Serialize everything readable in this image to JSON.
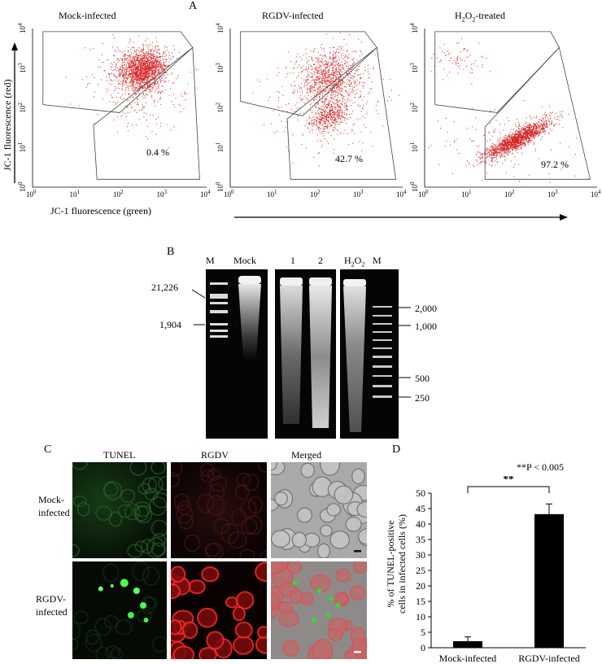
{
  "panel_a": {
    "letter": "A",
    "plots": [
      {
        "title": "Mock-infected",
        "percent": "0.4 %"
      },
      {
        "title": "RGDV-infected",
        "percent": "42.7 %"
      },
      {
        "title_main": "H",
        "title_sub": "2",
        "title_rest": "O",
        "title_sub2": "2",
        "title_tail": "-treated",
        "percent": "97.2 %"
      }
    ],
    "y_axis_label": "JC-1 fluorescence (red)",
    "x_axis_label": "JC-1 fluorescence (green)",
    "tick_base": "10",
    "tick_exponents": [
      "0",
      "1",
      "2",
      "3",
      "4"
    ],
    "dot_color": "#d42020"
  },
  "panel_b": {
    "letter": "B",
    "lanes_left": [
      "M",
      "Mock"
    ],
    "lanes_mid": [
      "1",
      "2"
    ],
    "lane_h2o2": {
      "main": "H",
      "sub": "2",
      "rest": "O",
      "sub2": "2"
    },
    "lane_m_right": "M",
    "markers_left": [
      "21,226",
      "1,904"
    ],
    "markers_right": [
      "2,000",
      "1,000",
      "500",
      "250"
    ]
  },
  "panel_c": {
    "letter": "C",
    "col_headers": [
      "TUNEL",
      "RGDV",
      "Merged"
    ],
    "row_labels": [
      [
        "Mock-",
        "infected"
      ],
      [
        "RGDV-",
        "infected"
      ]
    ]
  },
  "panel_d": {
    "letter": "D",
    "significance_note": "**P < 0.005",
    "sig_stars": "**",
    "y_label_line1": "% of TUNEL-positive",
    "y_label_line2": "cells in infected cells (%)"
  },
  "chart_data": {
    "type": "bar",
    "title": "",
    "categories": [
      "Mock-infected",
      "RGDV-infected"
    ],
    "values": [
      2.1,
      43.2
    ],
    "errors": [
      1.4,
      3.3
    ],
    "ylabel": "% of TUNEL-positive cells in infected cells (%)",
    "xlabel": "",
    "ylim": [
      0,
      50
    ],
    "yticks": [
      0,
      5,
      10,
      15,
      20,
      25,
      30,
      35,
      40,
      45,
      50
    ],
    "grid": false,
    "bar_color": "#000000"
  }
}
